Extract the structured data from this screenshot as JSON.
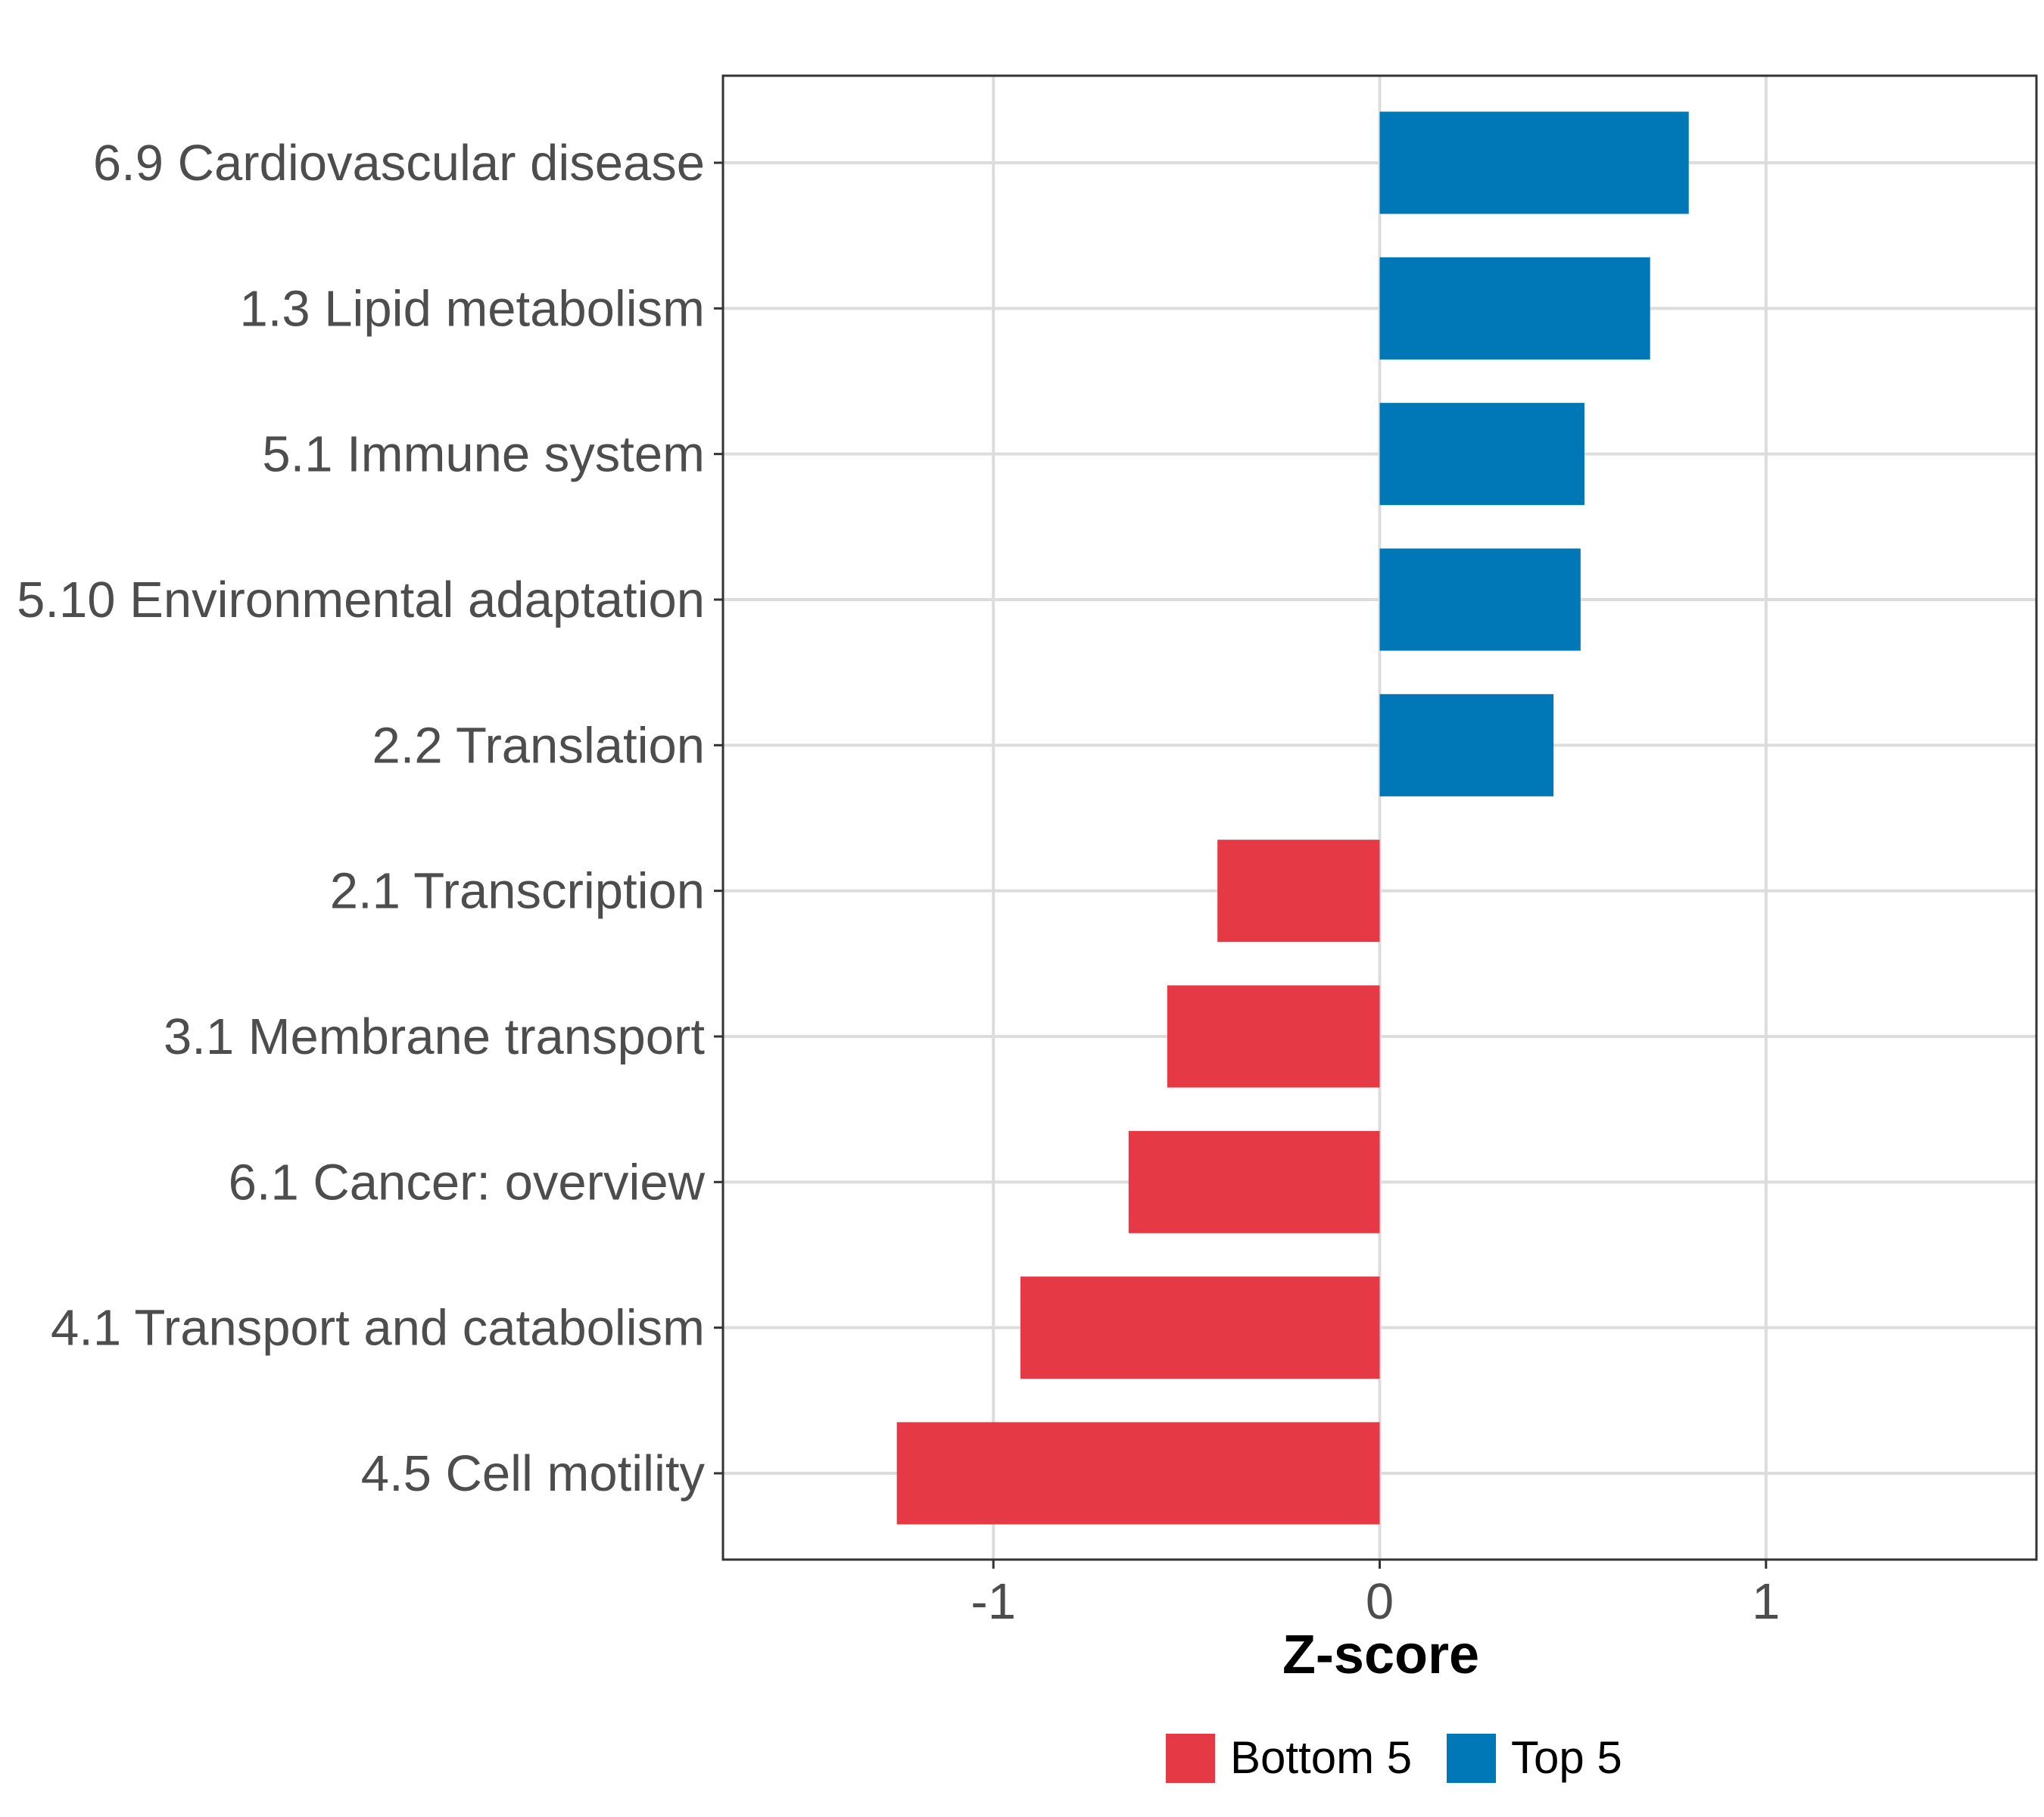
{
  "chart_data": {
    "type": "bar",
    "orientation": "horizontal",
    "title": "",
    "xlabel": "Z-score",
    "ylabel": "",
    "xlim": [
      -1.7,
      1.7
    ],
    "x_ticks": [
      -1,
      0,
      1
    ],
    "x_tick_labels": [
      "-1",
      "0",
      "1"
    ],
    "grid": true,
    "legend_position": "bottom",
    "categories": [
      "6.9 Cardiovascular disease",
      "1.3 Lipid metabolism",
      "5.1 Immune system",
      "5.10 Environmental adaptation",
      "2.2 Translation",
      "2.1 Transcription",
      "3.1 Membrane transport",
      "6.1 Cancer: overview",
      "4.1 Transport and catabolism",
      "4.5 Cell motility"
    ],
    "values": [
      0.8,
      0.7,
      0.53,
      0.52,
      0.45,
      -0.42,
      -0.55,
      -0.65,
      -0.93,
      -1.25
    ],
    "groups": [
      "Top 5",
      "Top 5",
      "Top 5",
      "Top 5",
      "Top 5",
      "Bottom 5",
      "Bottom 5",
      "Bottom 5",
      "Bottom 5",
      "Bottom 5"
    ],
    "legend": [
      {
        "name": "Bottom 5",
        "color": "#e63946"
      },
      {
        "name": "Top 5",
        "color": "#0077b6"
      }
    ]
  }
}
